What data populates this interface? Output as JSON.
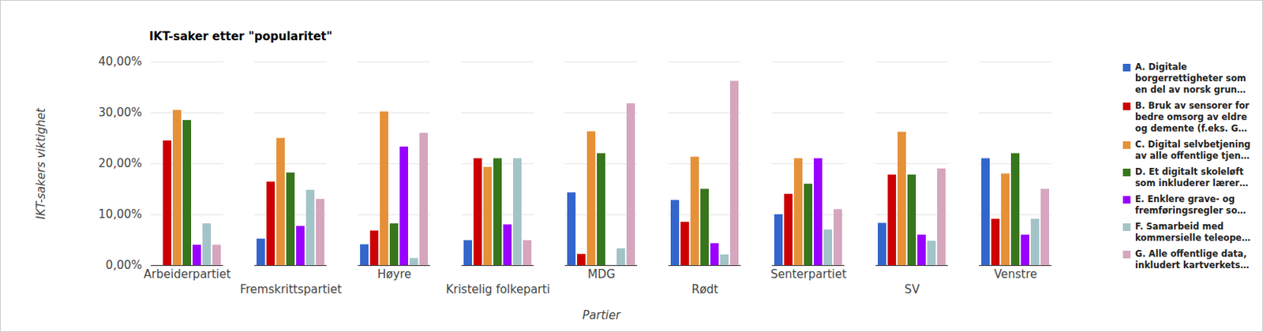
{
  "chart_data": {
    "type": "bar",
    "title": "IKT-saker etter \"popularitet\"",
    "x_label": "Partier",
    "y_label": "IKT-sakers viktighet",
    "categories": [
      "Arbeiderpartiet",
      "Fremskrittspartiet",
      "Høyre",
      "Kristelig folkeparti",
      "MDG",
      "Rødt",
      "Senterpartiet",
      "SV",
      "Venstre"
    ],
    "series": [
      {
        "name": "A. Digitale borgerrettigheter som en del av norsk grun…",
        "color": "#3366cc",
        "values": [
          0,
          5.2,
          4.1,
          4.9,
          14.3,
          12.8,
          10.0,
          8.3,
          21.0
        ]
      },
      {
        "name": "B. Bruk av sensorer for bedre omsorg av eldre og demente (f.eks. G…",
        "color": "#cc0000",
        "values": [
          24.5,
          16.4,
          6.8,
          21.0,
          2.2,
          8.5,
          14.0,
          17.8,
          9.1
        ]
      },
      {
        "name": "C. Digital selvbetjening av alle offentlige tjen…",
        "color": "#e69138",
        "values": [
          30.5,
          25.0,
          30.2,
          19.3,
          26.3,
          21.3,
          21.0,
          26.2,
          18.0
        ]
      },
      {
        "name": "D. Et digitalt skoleløft som inkluderer lærer…",
        "color": "#38761d",
        "values": [
          28.5,
          18.2,
          8.2,
          21.0,
          22.0,
          15.0,
          16.0,
          17.8,
          22.0
        ]
      },
      {
        "name": "E. Enklere grave- og fremføringsregler so…",
        "color": "#9900ff",
        "values": [
          4.0,
          7.7,
          23.3,
          8.0,
          0,
          4.3,
          21.0,
          6.0,
          6.0
        ]
      },
      {
        "name": "F. Samarbeid med kommersielle teleope…",
        "color": "#a2c4c9",
        "values": [
          8.2,
          14.8,
          1.4,
          21.0,
          3.3,
          2.1,
          7.0,
          4.8,
          9.1
        ]
      },
      {
        "name": "G. Alle offentlige data, inkludert kartverkets…",
        "color": "#d5a6bd",
        "values": [
          4.0,
          13.0,
          26.0,
          4.9,
          31.8,
          36.2,
          11.0,
          19.0,
          15.0
        ]
      }
    ],
    "ylim": [
      0,
      40
    ],
    "yticks": [
      {
        "value": 0,
        "label": "0,00%"
      },
      {
        "value": 10,
        "label": "10,00%"
      },
      {
        "value": 20,
        "label": "20,00%"
      },
      {
        "value": 30,
        "label": "30,00%"
      },
      {
        "value": 40,
        "label": "40,00%"
      }
    ],
    "grid": true,
    "legend": "right"
  }
}
